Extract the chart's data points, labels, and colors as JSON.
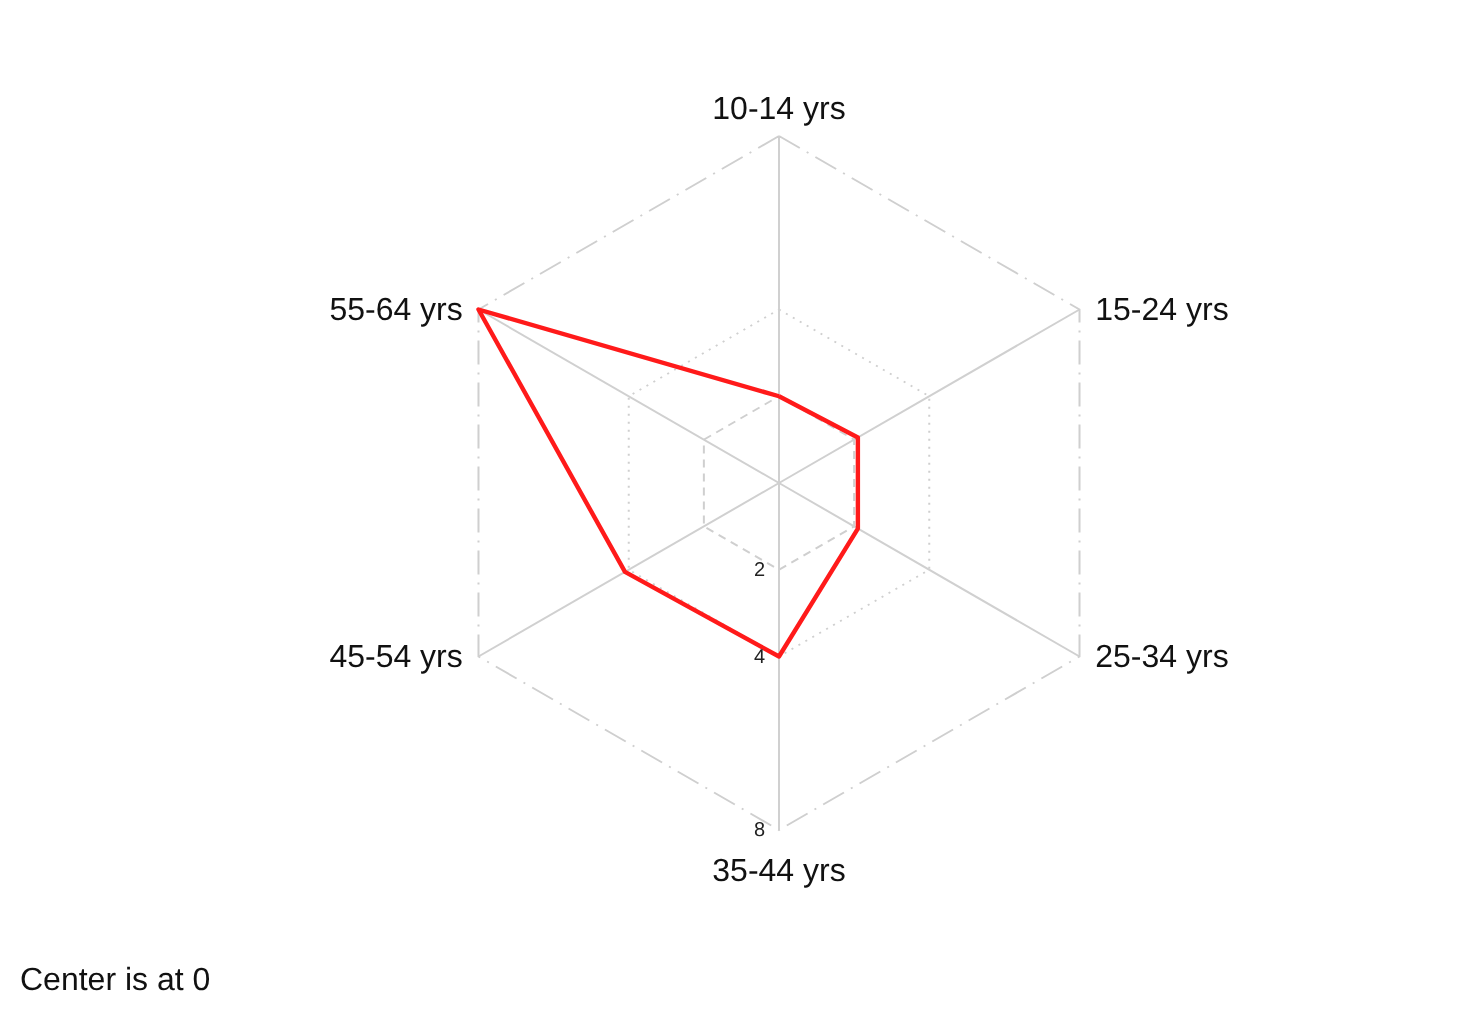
{
  "chart_data": {
    "type": "radar",
    "categories": [
      "10-14 yrs",
      "15-24 yrs",
      "25-34 yrs",
      "35-44 yrs",
      "45-54 yrs",
      "55-64 yrs"
    ],
    "series": [
      {
        "color": "#ff1a1a",
        "values": [
          2,
          2.1,
          2.1,
          4,
          4.1,
          8
        ]
      }
    ],
    "ylim": [
      0,
      8
    ],
    "yticks": [
      2,
      4,
      8
    ],
    "marker": "none",
    "line_style": "solid",
    "annotations": [
      "Center is at 0"
    ]
  }
}
